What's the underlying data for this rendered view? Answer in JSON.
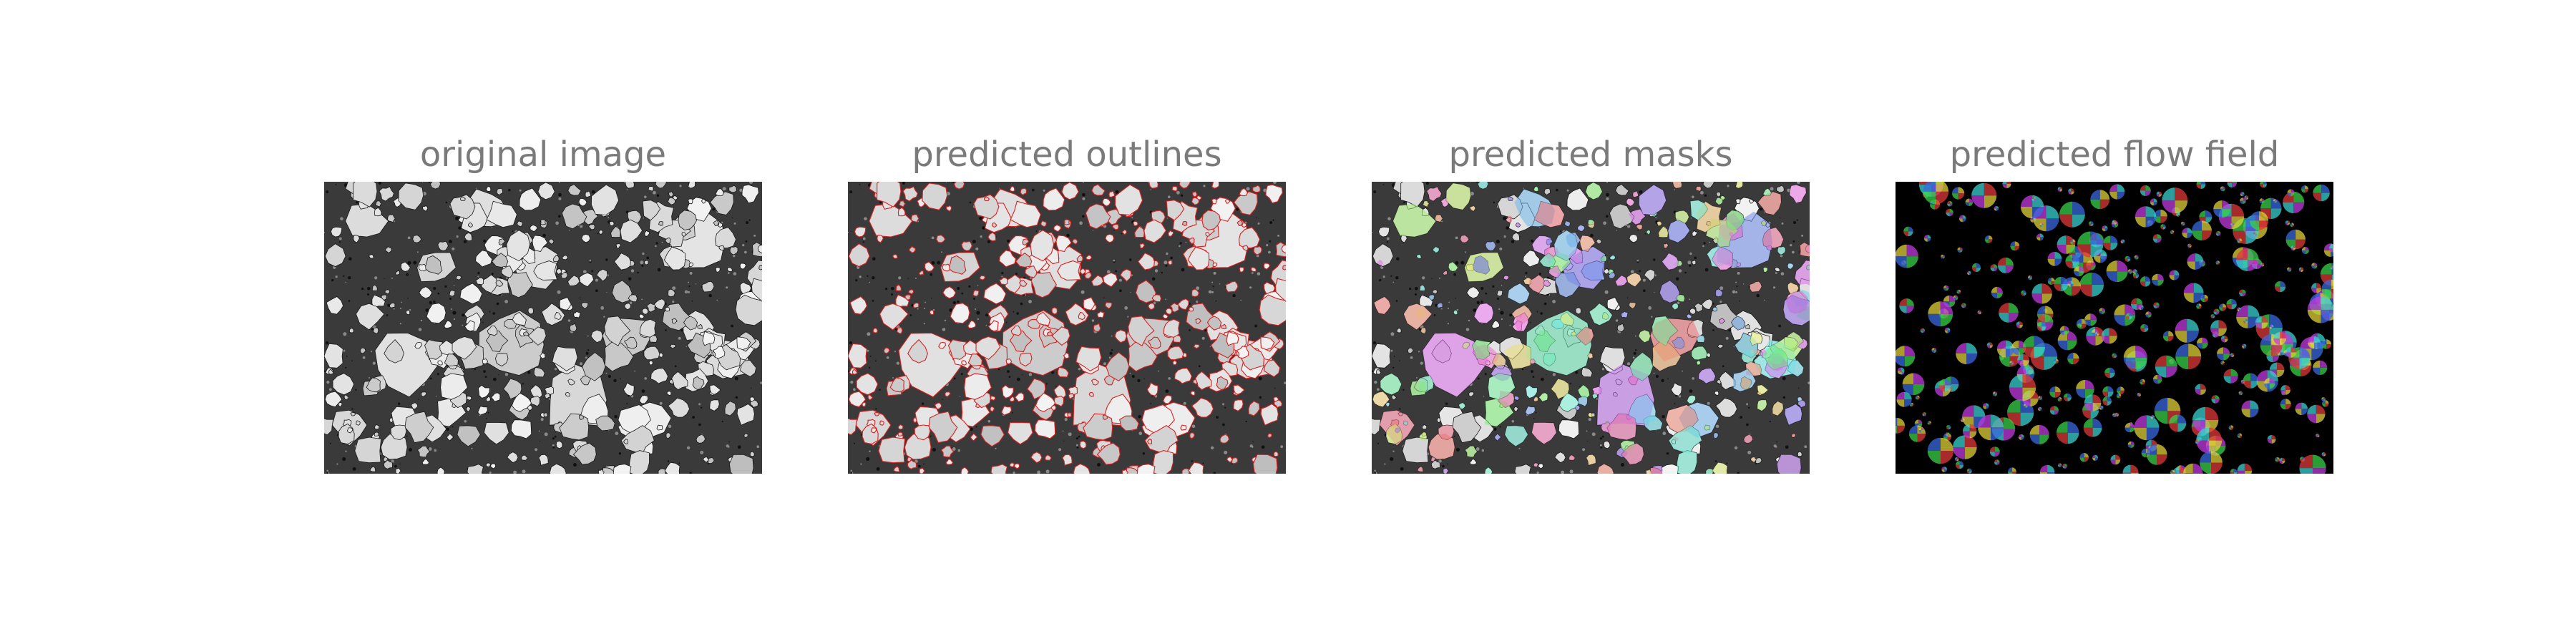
{
  "figure": {
    "panels": [
      {
        "id": "original",
        "title": "original image",
        "style": "grayscale"
      },
      {
        "id": "outlines",
        "title": "predicted outlines",
        "style": "outlines",
        "outline_color": "#d82020"
      },
      {
        "id": "masks",
        "title": "predicted masks",
        "style": "masks"
      },
      {
        "id": "flow",
        "title": "predicted flow field",
        "style": "flow"
      }
    ],
    "title_color": "#7a7a7a",
    "background_color": "#ffffff"
  }
}
